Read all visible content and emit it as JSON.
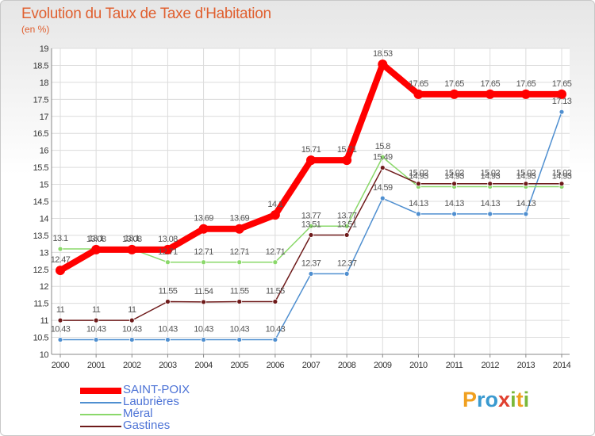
{
  "chart_data": {
    "type": "line",
    "title": "Evolution du Taux de Taxe d'Habitation",
    "subtitle": "(en %)",
    "x": [
      "2000",
      "2001",
      "2002",
      "2003",
      "2004",
      "2005",
      "2006",
      "2007",
      "2008",
      "2009",
      "2010",
      "2011",
      "2012",
      "2013",
      "2014"
    ],
    "yticks": [
      "10",
      "10.5",
      "11",
      "11.5",
      "12",
      "12.5",
      "13",
      "13.5",
      "14",
      "14.5",
      "15",
      "15.5",
      "16",
      "16.5",
      "17",
      "17.5",
      "18",
      "18.5",
      "19"
    ],
    "ylim": [
      10,
      19
    ],
    "series": [
      {
        "name": "SAINT-POIX",
        "color": "#ff0000",
        "values": [
          12.47,
          13.08,
          13.08,
          13.08,
          13.69,
          13.69,
          14.1,
          15.71,
          15.71,
          18.53,
          17.65,
          17.65,
          17.65,
          17.65,
          17.65
        ],
        "labels": [
          "12.47",
          "13.08",
          "13.08",
          "13.08",
          "13.69",
          "13.69",
          "14.1",
          "15.71",
          "15.71",
          "18.53",
          "17.65",
          "17.65",
          "17.65",
          "17.65",
          "17.65"
        ]
      },
      {
        "name": "Laubrières",
        "color": "#4f8fd0",
        "values": [
          10.43,
          10.43,
          10.43,
          10.43,
          10.43,
          10.43,
          10.43,
          12.37,
          12.37,
          14.59,
          14.13,
          14.13,
          14.13,
          14.13,
          17.13
        ],
        "labels": [
          "10.43",
          "10.43",
          "10.43",
          "10.43",
          "10.43",
          "10.43",
          "10.43",
          "12.37",
          "12.37",
          "14.59",
          "14.13",
          "14.13",
          "14.13",
          "14.13",
          "17.13"
        ]
      },
      {
        "name": "Méral",
        "color": "#8ad86a",
        "values": [
          13.1,
          13.1,
          13.1,
          12.71,
          12.71,
          12.71,
          12.71,
          13.77,
          13.77,
          15.8,
          14.93,
          14.93,
          14.93,
          14.93,
          14.93
        ],
        "labels": [
          "13.1",
          "13.1",
          "13.1",
          "12.71",
          "12.71",
          "12.71",
          "12.71",
          "13.77",
          "13.77",
          "15.8",
          "14.93",
          "14.93",
          "14.93",
          "14.93",
          "14.93"
        ]
      },
      {
        "name": "Gastines",
        "color": "#6e1a1a",
        "values": [
          11,
          11,
          11,
          11.55,
          11.54,
          11.55,
          11.55,
          13.51,
          13.51,
          15.49,
          15.02,
          15.02,
          15.02,
          15.02,
          15.02
        ],
        "labels": [
          "11",
          "11",
          "11",
          "11.55",
          "11.54",
          "11.55",
          "11.55",
          "13.51",
          "13.51",
          "15.49",
          "15.02",
          "15.02",
          "15.02",
          "15.02",
          "15.02"
        ]
      }
    ]
  },
  "logo": {
    "letters": [
      "P",
      "r",
      "o",
      "x",
      "i",
      "t",
      "i"
    ]
  }
}
